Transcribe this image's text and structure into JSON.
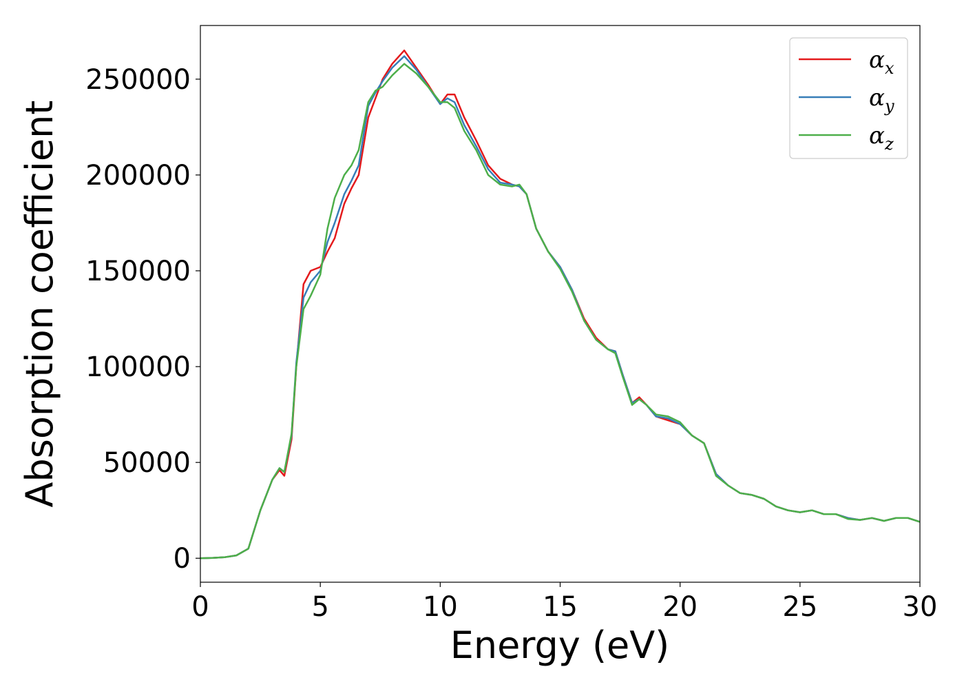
{
  "chart_data": {
    "type": "line",
    "xlabel": "Energy (eV)",
    "ylabel": "Absorption coefficient",
    "xlim": [
      0,
      30
    ],
    "ylim": [
      -12500,
      278000
    ],
    "xticks": [
      0,
      5,
      10,
      15,
      20,
      25,
      30
    ],
    "yticks": [
      0,
      50000,
      100000,
      150000,
      200000,
      250000
    ],
    "grid": false,
    "legend_position": "top-right",
    "x": [
      0,
      0.5,
      1,
      1.5,
      2,
      2.5,
      3,
      3.3,
      3.5,
      3.8,
      4,
      4.3,
      4.6,
      5,
      5.3,
      5.6,
      6,
      6.3,
      6.6,
      7,
      7.3,
      7.6,
      8,
      8.5,
      9,
      9.5,
      10,
      10.3,
      10.6,
      11,
      11.5,
      12,
      12.5,
      13,
      13.3,
      13.6,
      14,
      14.5,
      15,
      15.5,
      16,
      16.5,
      17,
      17.3,
      17.6,
      18,
      18.3,
      18.6,
      19,
      19.5,
      20,
      20.5,
      21,
      21.5,
      22,
      22.5,
      23,
      23.5,
      24,
      24.5,
      25,
      25.5,
      26,
      26.5,
      27,
      27.5,
      28,
      28.5,
      29,
      29.5,
      30
    ],
    "series": [
      {
        "name": "α",
        "subscript": "x",
        "color": "#e41a1c",
        "values": [
          0,
          200,
          500,
          1500,
          5000,
          25000,
          41000,
          46000,
          43000,
          62000,
          100000,
          143000,
          150000,
          152000,
          160000,
          167000,
          185000,
          193000,
          200000,
          230000,
          240000,
          250000,
          258000,
          265000,
          256000,
          247000,
          237000,
          242000,
          242000,
          230000,
          218000,
          205000,
          198000,
          195000,
          194000,
          190000,
          172000,
          160000,
          152000,
          140000,
          125000,
          115000,
          109000,
          108000,
          96000,
          81000,
          84000,
          80000,
          74000,
          72000,
          70000,
          64000,
          60000,
          44000,
          38000,
          34000,
          33000,
          31000,
          27000,
          25000,
          24000,
          25000,
          23000,
          23000,
          21000,
          20000,
          21000,
          19500,
          21000,
          21000,
          19000
        ]
      },
      {
        "name": "α",
        "subscript": "y",
        "color": "#377eb8",
        "values": [
          0,
          200,
          500,
          1500,
          5000,
          25000,
          41000,
          47000,
          45000,
          64000,
          102000,
          136000,
          144000,
          150000,
          165000,
          175000,
          190000,
          197000,
          205000,
          236000,
          243000,
          249000,
          256000,
          262000,
          255000,
          246000,
          237000,
          240000,
          238000,
          226000,
          215000,
          203000,
          196000,
          195000,
          194000,
          190000,
          172000,
          160000,
          152000,
          140000,
          124000,
          114000,
          109000,
          108000,
          96000,
          81000,
          83000,
          80000,
          74000,
          73000,
          70000,
          64000,
          60000,
          44000,
          38000,
          34000,
          33000,
          31000,
          27000,
          25000,
          24000,
          25000,
          23000,
          23000,
          21000,
          20000,
          21000,
          19500,
          21000,
          21000,
          19000
        ]
      },
      {
        "name": "α",
        "subscript": "z",
        "color": "#4daf4a",
        "values": [
          0,
          200,
          500,
          1500,
          5000,
          25000,
          41000,
          47000,
          45000,
          65000,
          100000,
          130000,
          137000,
          148000,
          172000,
          188000,
          200000,
          205000,
          213000,
          238000,
          244000,
          246000,
          252000,
          258000,
          253000,
          246000,
          238000,
          238000,
          235000,
          223000,
          213000,
          200000,
          195000,
          194000,
          195000,
          190000,
          172000,
          160000,
          151000,
          139000,
          124000,
          114000,
          109000,
          107000,
          95000,
          80000,
          83000,
          80000,
          75000,
          74000,
          71000,
          64000,
          60000,
          43000,
          38000,
          34000,
          33000,
          31000,
          27000,
          25000,
          24000,
          25000,
          23000,
          23000,
          20500,
          20000,
          21000,
          19500,
          21000,
          21000,
          19000
        ]
      }
    ]
  }
}
